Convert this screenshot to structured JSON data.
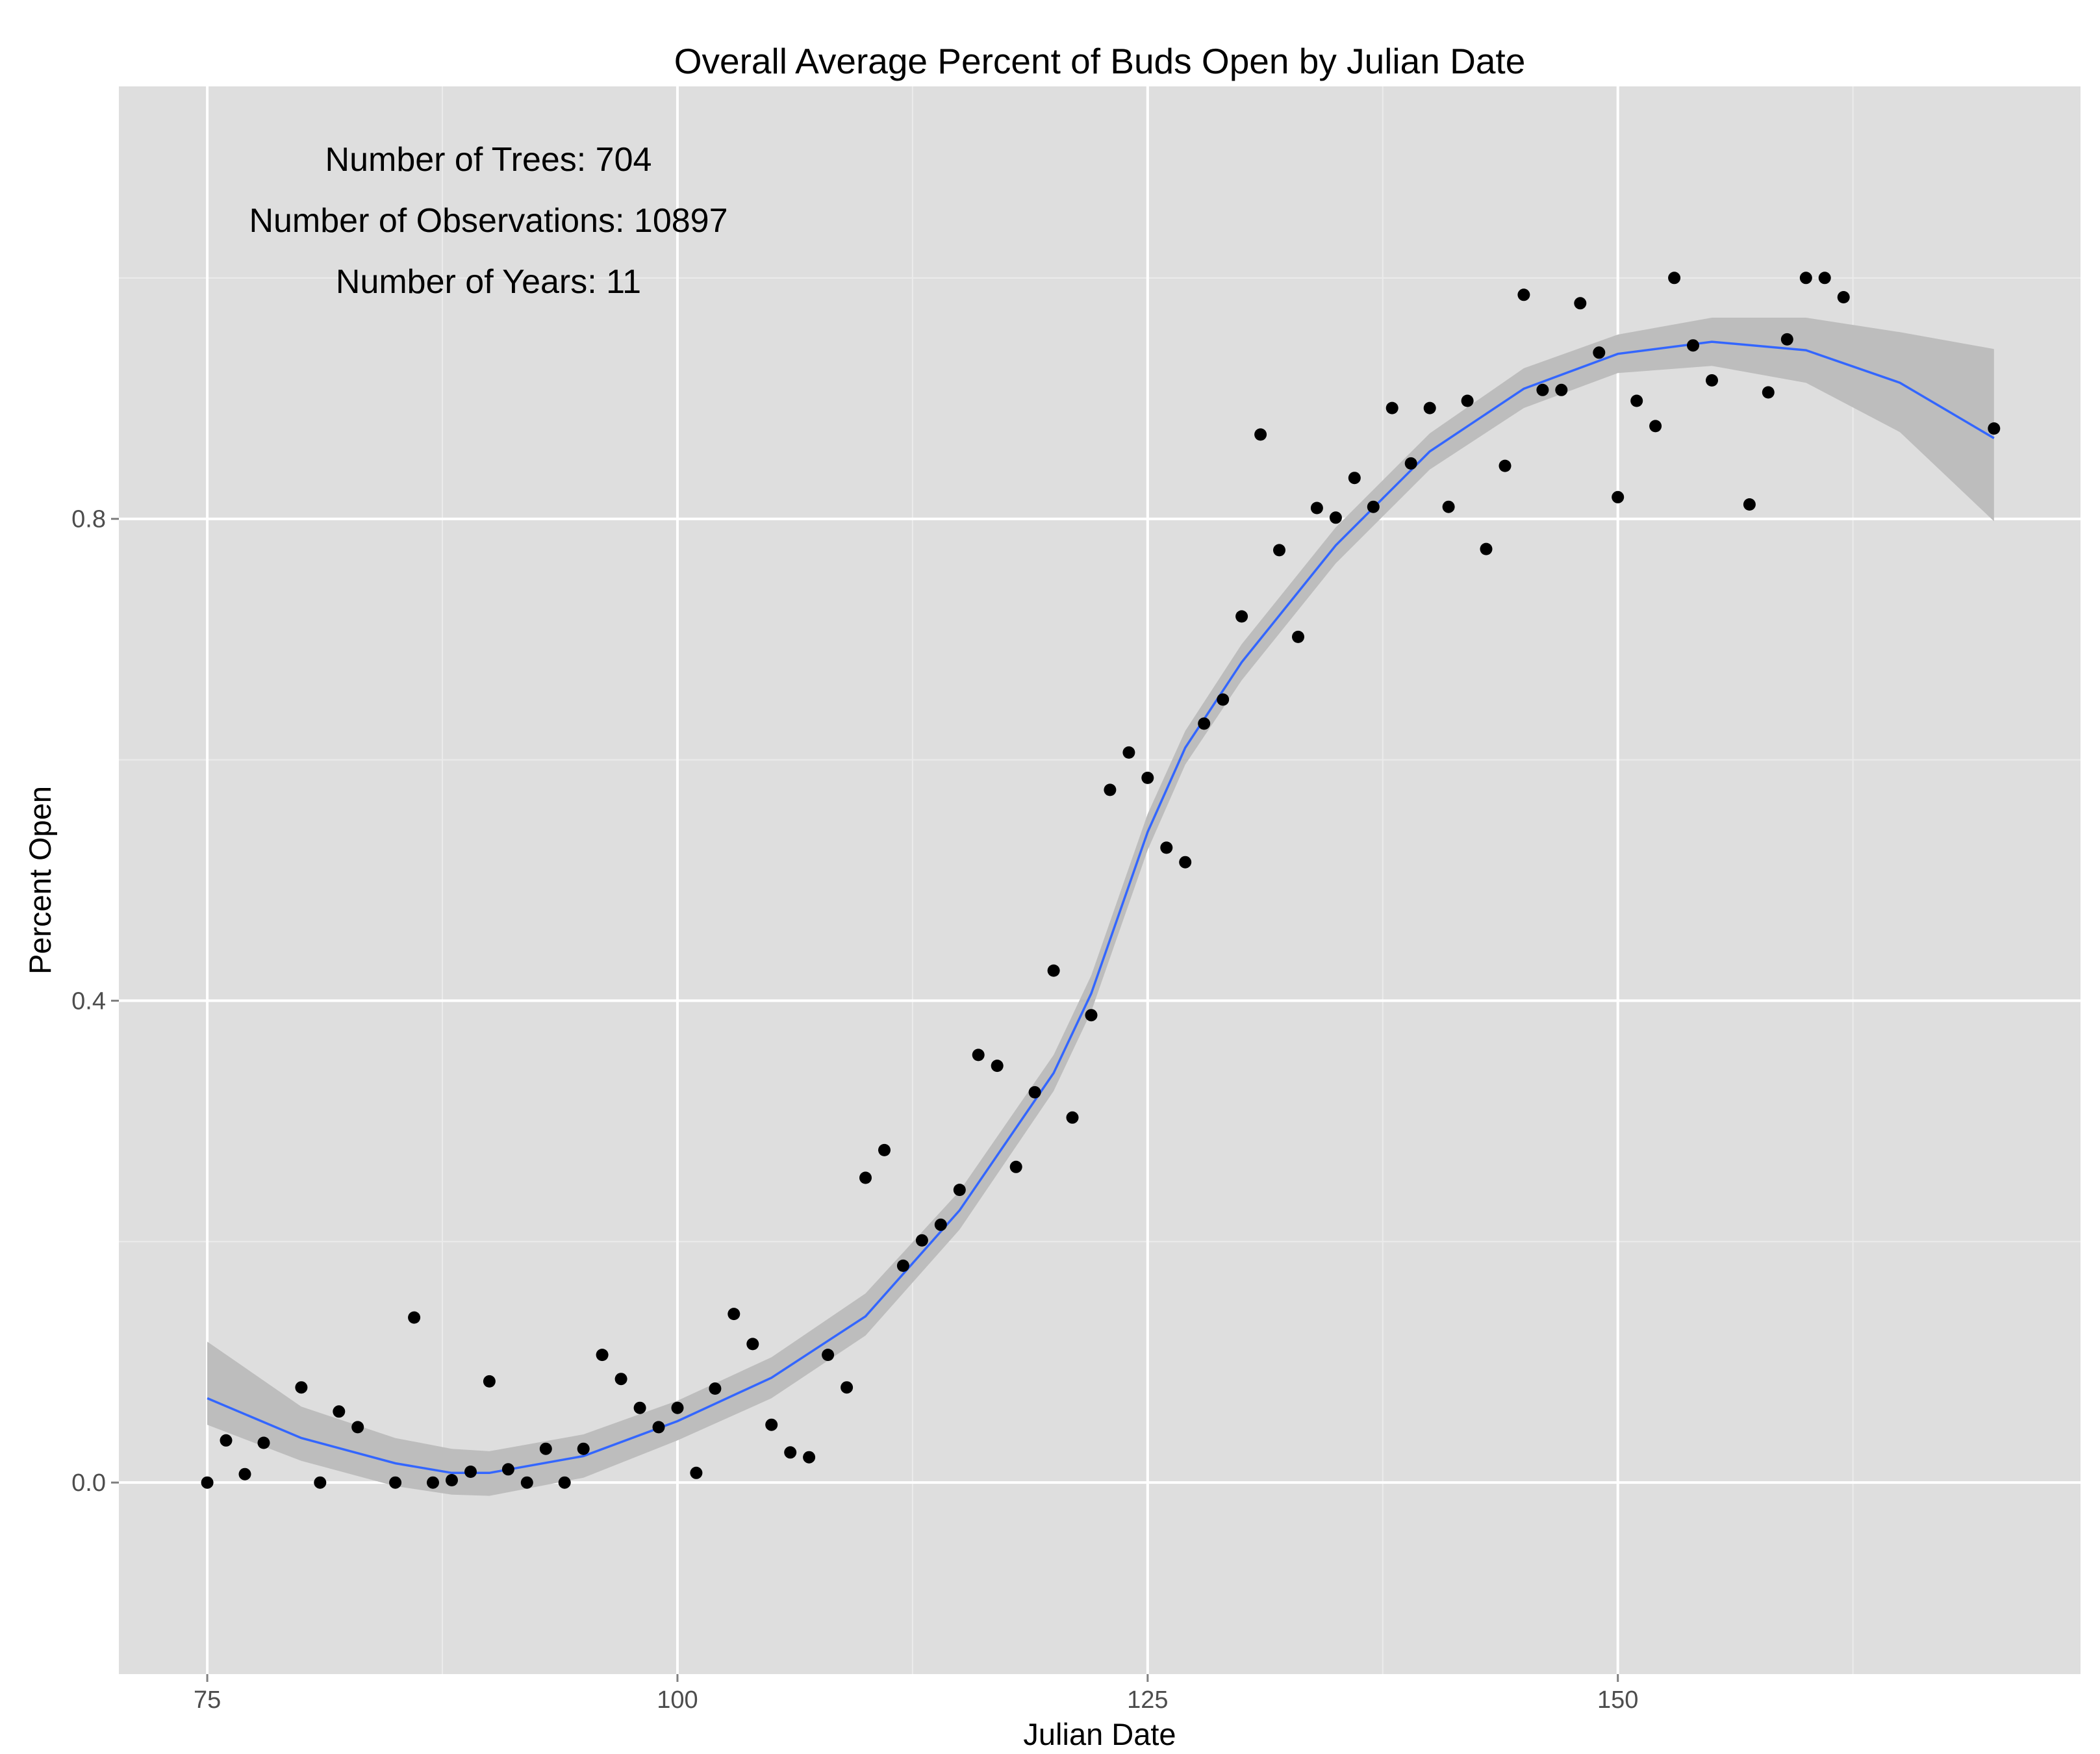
{
  "chart_data": {
    "type": "scatter",
    "title": "Overall Average Percent of Buds Open by Julian Date",
    "xlabel": "Julian Date",
    "ylabel": "Percent Open",
    "xlim": [
      70.3,
      174.6
    ],
    "ylim": [
      -0.159,
      1.159
    ],
    "x_ticks": [
      75,
      100,
      125,
      150
    ],
    "x_tick_labels": [
      "75",
      "100",
      "125",
      "150"
    ],
    "y_ticks": [
      0.0,
      0.4,
      0.8
    ],
    "y_tick_labels": [
      "0.0",
      "0.4",
      "0.8"
    ],
    "grid": true,
    "annotations": [
      "Number of Trees: 704",
      "Number of Observations: 10897",
      "Number of Years: 11"
    ],
    "colors": {
      "panel": "#dedede",
      "grid_major": "#ffffff",
      "grid_minor": "#ebebeb",
      "points": "#000000",
      "smooth_line": "#3366ff",
      "ribbon": "#bdbdbd"
    },
    "points": [
      [
        75,
        0.0
      ],
      [
        76,
        0.035
      ],
      [
        77,
        0.007
      ],
      [
        78,
        0.033
      ],
      [
        80,
        0.079
      ],
      [
        81,
        0.0
      ],
      [
        82,
        0.059
      ],
      [
        83,
        0.046
      ],
      [
        85,
        0.0
      ],
      [
        86,
        0.137
      ],
      [
        87,
        0.0
      ],
      [
        88,
        0.002
      ],
      [
        89,
        0.009
      ],
      [
        90,
        0.084
      ],
      [
        91,
        0.011
      ],
      [
        92,
        0.0
      ],
      [
        93,
        0.028
      ],
      [
        94,
        0.0
      ],
      [
        95,
        0.028
      ],
      [
        96,
        0.106
      ],
      [
        97,
        0.086
      ],
      [
        98,
        0.062
      ],
      [
        99,
        0.046
      ],
      [
        100,
        0.062
      ],
      [
        101,
        0.008
      ],
      [
        102,
        0.078
      ],
      [
        103,
        0.14
      ],
      [
        104,
        0.115
      ],
      [
        105,
        0.048
      ],
      [
        106,
        0.025
      ],
      [
        107,
        0.021
      ],
      [
        108,
        0.106
      ],
      [
        109,
        0.079
      ],
      [
        110,
        0.253
      ],
      [
        111,
        0.276
      ],
      [
        112,
        0.18
      ],
      [
        113,
        0.201
      ],
      [
        114,
        0.214
      ],
      [
        115,
        0.243
      ],
      [
        116,
        0.355
      ],
      [
        117,
        0.346
      ],
      [
        118,
        0.262
      ],
      [
        119,
        0.324
      ],
      [
        120,
        0.425
      ],
      [
        121,
        0.303
      ],
      [
        122,
        0.388
      ],
      [
        123,
        0.575
      ],
      [
        124,
        0.606
      ],
      [
        125,
        0.585
      ],
      [
        126,
        0.527
      ],
      [
        127,
        0.515
      ],
      [
        128,
        0.63
      ],
      [
        129,
        0.65
      ],
      [
        130,
        0.719
      ],
      [
        131,
        0.87
      ],
      [
        132,
        0.774
      ],
      [
        133,
        0.702
      ],
      [
        134,
        0.809
      ],
      [
        135,
        0.801
      ],
      [
        136,
        0.834
      ],
      [
        137,
        0.81
      ],
      [
        138,
        0.892
      ],
      [
        139,
        0.846
      ],
      [
        140,
        0.892
      ],
      [
        141,
        0.81
      ],
      [
        142,
        0.898
      ],
      [
        143,
        0.775
      ],
      [
        144,
        0.844
      ],
      [
        145,
        0.986
      ],
      [
        146,
        0.907
      ],
      [
        147,
        0.907
      ],
      [
        148,
        0.979
      ],
      [
        149,
        0.938
      ],
      [
        150,
        0.818
      ],
      [
        151,
        0.898
      ],
      [
        152,
        0.877
      ],
      [
        153,
        1.0
      ],
      [
        154,
        0.944
      ],
      [
        155,
        0.915
      ],
      [
        157,
        0.812
      ],
      [
        158,
        0.905
      ],
      [
        159,
        0.949
      ],
      [
        160,
        1.0
      ],
      [
        161,
        1.0
      ],
      [
        162,
        0.984
      ],
      [
        170,
        0.875
      ]
    ],
    "smooth": {
      "method": "loess",
      "x": [
        75,
        80,
        85,
        88,
        90,
        95,
        100,
        105,
        110,
        115,
        120,
        122,
        125,
        127,
        130,
        135,
        140,
        145,
        150,
        155,
        160,
        165,
        170
      ],
      "y": [
        0.07,
        0.037,
        0.016,
        0.008,
        0.008,
        0.022,
        0.051,
        0.087,
        0.138,
        0.226,
        0.34,
        0.406,
        0.54,
        0.61,
        0.681,
        0.778,
        0.856,
        0.908,
        0.937,
        0.947,
        0.94,
        0.913,
        0.867
      ],
      "lower": [
        0.048,
        0.018,
        -0.003,
        -0.01,
        -0.011,
        0.004,
        0.035,
        0.07,
        0.122,
        0.21,
        0.325,
        0.391,
        0.525,
        0.596,
        0.666,
        0.763,
        0.841,
        0.892,
        0.921,
        0.927,
        0.913,
        0.872,
        0.798
      ],
      "upper": [
        0.117,
        0.063,
        0.037,
        0.028,
        0.026,
        0.04,
        0.068,
        0.104,
        0.157,
        0.242,
        0.355,
        0.421,
        0.555,
        0.624,
        0.696,
        0.793,
        0.871,
        0.925,
        0.953,
        0.967,
        0.967,
        0.955,
        0.941
      ]
    }
  }
}
